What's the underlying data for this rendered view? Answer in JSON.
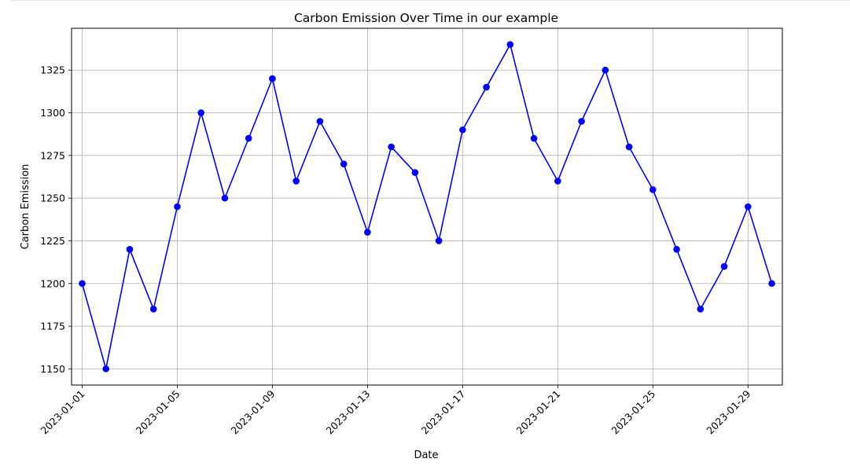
{
  "chart_data": {
    "type": "line",
    "title": "Carbon Emission Over Time in our example",
    "xlabel": "Date",
    "ylabel": "Carbon Emission",
    "x": [
      "2023-01-01",
      "2023-01-02",
      "2023-01-03",
      "2023-01-04",
      "2023-01-05",
      "2023-01-06",
      "2023-01-07",
      "2023-01-08",
      "2023-01-09",
      "2023-01-10",
      "2023-01-11",
      "2023-01-12",
      "2023-01-13",
      "2023-01-14",
      "2023-01-15",
      "2023-01-16",
      "2023-01-17",
      "2023-01-18",
      "2023-01-19",
      "2023-01-20",
      "2023-01-21",
      "2023-01-22",
      "2023-01-23",
      "2023-01-24",
      "2023-01-25",
      "2023-01-26",
      "2023-01-27",
      "2023-01-28",
      "2023-01-29",
      "2023-01-30"
    ],
    "series": [
      {
        "color": "#0000ff",
        "marker": "circle",
        "values": [
          1200,
          1150,
          1220,
          1185,
          1245,
          1300,
          1250,
          1285,
          1320,
          1260,
          1295,
          1270,
          1230,
          1280,
          1265,
          1225,
          1290,
          1315,
          1340,
          1285,
          1260,
          1295,
          1325,
          1280,
          1255,
          1220,
          1185,
          1210,
          1245,
          1200
        ]
      }
    ],
    "xlim": [
      "2022-12-31T13:18",
      "2023-01-30T10:42"
    ],
    "ylim": [
      1140.5,
      1349.5
    ],
    "xticks": [
      "2023-01-01",
      "2023-01-05",
      "2023-01-09",
      "2023-01-13",
      "2023-01-17",
      "2023-01-21",
      "2023-01-25",
      "2023-01-29"
    ],
    "yticks": [
      "1150",
      "1175",
      "1200",
      "1225",
      "1250",
      "1275",
      "1300",
      "1325"
    ],
    "grid": true,
    "x_tick_rotation": 45,
    "legend": "none"
  }
}
